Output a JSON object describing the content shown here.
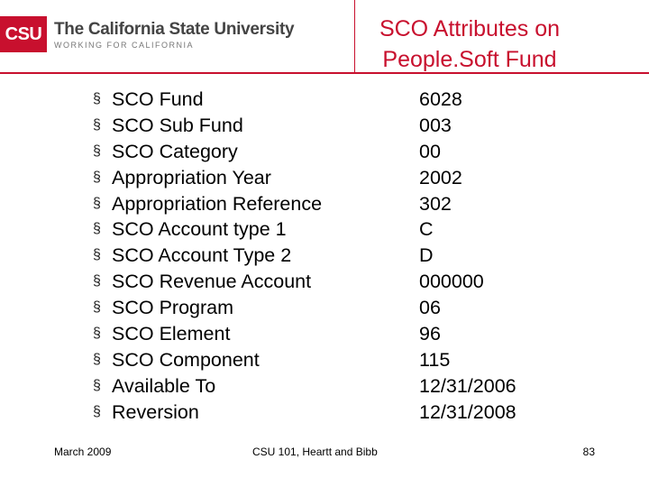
{
  "header": {
    "logo_mark": "CSU",
    "logo_title": "The California State University",
    "logo_subtitle": "WORKING FOR CALIFORNIA",
    "accent_color": "#c8102e"
  },
  "slide": {
    "title_line1": "SCO Attributes on",
    "title_line2": "People.Soft Fund"
  },
  "attributes": [
    {
      "label": "SCO Fund",
      "value": "6028"
    },
    {
      "label": "SCO Sub Fund",
      "value": "003"
    },
    {
      "label": "SCO Category",
      "value": "00"
    },
    {
      "label": "Appropriation Year",
      "value": "2002"
    },
    {
      "label": "Appropriation Reference",
      "value": "302"
    },
    {
      "label": "SCO Account type 1",
      "value": "C"
    },
    {
      "label": "SCO Account Type 2",
      "value": "D"
    },
    {
      "label": "SCO Revenue Account",
      "value": "000000"
    },
    {
      "label": "SCO Program",
      "value": "06"
    },
    {
      "label": "SCO Element",
      "value": "96"
    },
    {
      "label": "SCO Component",
      "value": "115"
    },
    {
      "label": "Available To",
      "value": "12/31/2006"
    },
    {
      "label": "Reversion",
      "value": "12/31/2008"
    }
  ],
  "bullet_glyph": "§",
  "footer": {
    "date": "March 2009",
    "course": "CSU 101, Heartt and Bibb",
    "page_number": "83"
  }
}
